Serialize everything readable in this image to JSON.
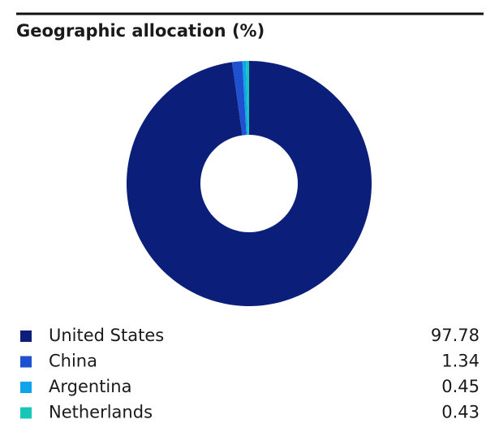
{
  "chart_data": {
    "type": "donut",
    "title": "Geographic allocation (%)",
    "categories": [
      "United States",
      "China",
      "Argentina",
      "Netherlands"
    ],
    "values": [
      97.78,
      1.34,
      0.45,
      0.43
    ],
    "colors": [
      "#0b1f7a",
      "#1f50d0",
      "#0ea3ea",
      "#16c6b9"
    ]
  }
}
